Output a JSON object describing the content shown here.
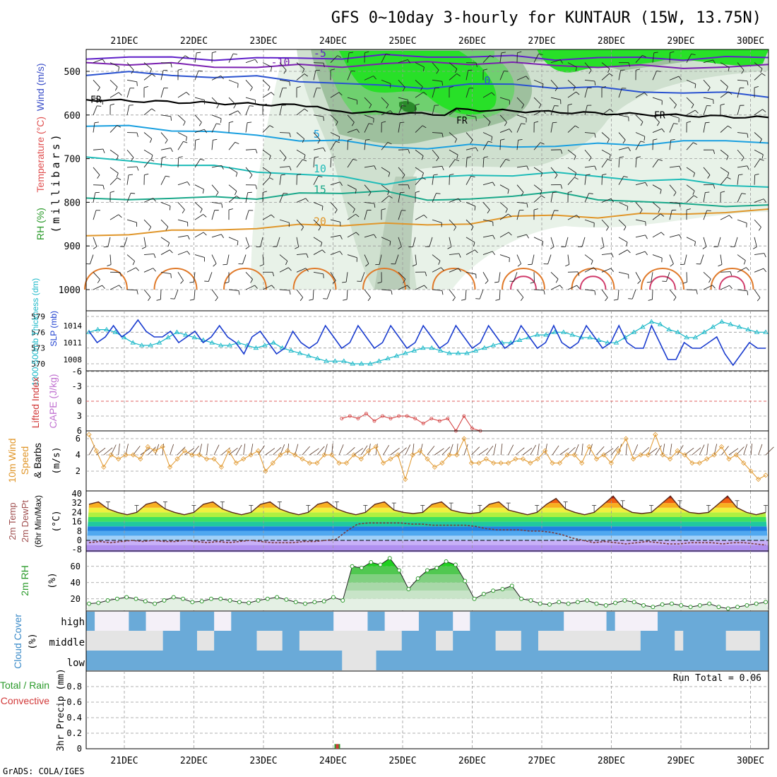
{
  "title": "GFS 0~10day 3-hourly for KUNTAUR (15W, 13.75N)",
  "footer": "GrADS: COLA/IGES",
  "dates": [
    "21DEC",
    "22DEC",
    "23DEC",
    "24DEC",
    "25DEC",
    "26DEC",
    "27DEC",
    "28DEC",
    "29DEC",
    "30DEC"
  ],
  "chart_data": [
    {
      "type": "heatmap",
      "panel": "vertical cross-section",
      "ylabel_parts": [
        "RH (%)",
        "Temperature (°C)",
        "Wind (m/s)"
      ],
      "ylabel_unit": "(millibars)",
      "yticks": [
        500,
        600,
        700,
        800,
        900,
        1000
      ],
      "ylim": [
        450,
        1000
      ],
      "freezing_label": "FR",
      "temperature_contours": [
        {
          "label": "-10",
          "color": "#7a1fb0",
          "p": [
            480,
            482,
            485,
            488,
            490,
            488,
            486,
            484,
            480,
            480,
            483,
            486,
            488,
            490,
            490,
            490,
            488
          ]
        },
        {
          "label": "-5",
          "color": "#5f1fc8",
          "p": [
            468,
            468,
            470,
            470,
            472,
            470,
            468,
            466,
            465,
            466,
            468,
            470,
            470,
            470,
            470,
            470,
            468
          ]
        },
        {
          "label": "0",
          "color": "#2a52d0",
          "p": [
            505,
            505,
            508,
            512,
            515,
            520,
            528,
            535,
            535,
            532,
            530,
            535,
            540,
            545,
            548,
            552,
            555
          ]
        },
        {
          "label": "5",
          "color": "#1aa0e0",
          "p": [
            625,
            628,
            632,
            640,
            648,
            655,
            662,
            672,
            675,
            672,
            670,
            672,
            668,
            665,
            662,
            660,
            660
          ]
        },
        {
          "label": "10",
          "color": "#1fbcb8",
          "p": [
            700,
            705,
            712,
            720,
            728,
            735,
            745,
            755,
            745,
            740,
            735,
            735,
            740,
            748,
            752,
            758,
            765
          ]
        },
        {
          "label": "15",
          "color": "#1aa88a",
          "p": [
            795,
            790,
            792,
            790,
            788,
            782,
            780,
            770,
            800,
            790,
            785,
            780,
            790,
            800,
            805,
            805,
            810
          ]
        },
        {
          "label": "20",
          "color": "#e0962a",
          "p": [
            878,
            870,
            868,
            862,
            858,
            855,
            850,
            848,
            855,
            845,
            835,
            830,
            832,
            830,
            825,
            822,
            820
          ]
        }
      ],
      "rh_levels": [
        10,
        30,
        50,
        70,
        90
      ]
    },
    {
      "type": "line",
      "panel": "slp-thickness",
      "ylabel_left": "1000-500mb Thickness (dm)",
      "ylabel_right": "SLP (mb)",
      "left_ticks": [
        570,
        573,
        576,
        579
      ],
      "right_ticks": [
        1008,
        1011,
        1014
      ],
      "series": [
        {
          "name": "SLP (mb)",
          "color": "#1a3ccf",
          "values": [
            1013,
            1011,
            1012,
            1014,
            1012,
            1013,
            1015,
            1013,
            1012,
            1012,
            1013,
            1011,
            1012,
            1013,
            1011,
            1012,
            1014,
            1012,
            1011,
            1009,
            1012,
            1013,
            1011,
            1009,
            1010,
            1013,
            1011,
            1010,
            1011,
            1014,
            1012,
            1010,
            1011,
            1014,
            1012,
            1010,
            1011,
            1014,
            1012,
            1010,
            1011,
            1014,
            1012,
            1010,
            1011,
            1014,
            1012,
            1010,
            1011,
            1014,
            1012,
            1010,
            1011,
            1014,
            1012,
            1010,
            1011,
            1014,
            1011,
            1010,
            1011,
            1014,
            1012,
            1010,
            1011,
            1014,
            1011,
            1010,
            1010,
            1014,
            1011,
            1008,
            1008,
            1011,
            1010,
            1010,
            1011,
            1012,
            1009,
            1007,
            1009,
            1011,
            1010,
            1010
          ]
        },
        {
          "name": "Thickness (dm)",
          "color": "#1ab8c8",
          "values": [
            576,
            576.5,
            576.5,
            576,
            575,
            574,
            573.5,
            573.5,
            574,
            575,
            576,
            575.5,
            575,
            574.5,
            574,
            573.5,
            573.5,
            574,
            573.5,
            573,
            573.5,
            574,
            573,
            572.5,
            572,
            571.5,
            571,
            570.5,
            570.5,
            570.5,
            570,
            570,
            570,
            570.5,
            571,
            571.5,
            572,
            572.5,
            573,
            573,
            572.5,
            572,
            572,
            572,
            572.5,
            573,
            573.5,
            574,
            574,
            574.5,
            575,
            575.5,
            575.5,
            576,
            576,
            575.5,
            575,
            575,
            574.5,
            574,
            574,
            575,
            576,
            577,
            578,
            577.5,
            576.5,
            576,
            575,
            575,
            576,
            577,
            578,
            577.5,
            577,
            576.5,
            576,
            576
          ]
        }
      ]
    },
    {
      "type": "line",
      "panel": "stability",
      "ylabel_left": "Lifted Index",
      "ylabel_right": "CAPE (J/kg)",
      "yticks": [
        -6,
        -3,
        0,
        3,
        6
      ],
      "series": [
        {
          "name": "Lifted Index",
          "color": "#d23a3a",
          "values": [
            null,
            null,
            null,
            null,
            null,
            null,
            null,
            null,
            null,
            null,
            null,
            null,
            null,
            null,
            null,
            null,
            null,
            null,
            null,
            null,
            null,
            null,
            null,
            null,
            null,
            null,
            null,
            null,
            null,
            null,
            null,
            3.5,
            3,
            3.5,
            2.5,
            4,
            3,
            3.5,
            3,
            3,
            3.5,
            4.5,
            3.5,
            4,
            3.5,
            6,
            3,
            5.5,
            6
          ]
        }
      ]
    },
    {
      "type": "line",
      "panel": "10m wind",
      "ylabel": [
        "10m Wind",
        "Speed",
        "& Barbs",
        "(m/s)"
      ],
      "yticks": [
        2,
        4,
        6
      ],
      "series": [
        {
          "name": "Speed",
          "color": "#e0962a",
          "values": [
            6.5,
            4.5,
            2.5,
            4,
            3.5,
            4,
            4,
            3.5,
            5,
            4.5,
            5,
            2.5,
            3.5,
            4.5,
            4,
            4,
            3.5,
            3.5,
            2.5,
            4.5,
            3,
            3.5,
            4,
            4.5,
            2,
            3,
            4,
            4.5,
            4,
            3.5,
            3,
            3,
            4,
            4,
            3,
            3,
            4,
            3.5,
            4.5,
            5,
            3,
            3.5,
            4,
            1,
            4,
            4.5,
            3.5,
            2.5,
            3,
            4,
            4,
            6,
            3,
            3,
            3.5,
            3,
            3,
            3,
            3.5,
            3.5,
            3,
            3.5,
            4.5,
            3,
            3,
            4,
            4,
            3,
            5,
            3.5,
            4,
            3,
            4.5,
            6,
            3.5,
            4,
            4,
            6.5,
            4,
            3.5,
            4.5,
            4,
            3,
            3,
            3.5,
            4,
            5,
            3.5,
            4,
            3,
            2,
            1,
            1.5
          ]
        }
      ]
    },
    {
      "type": "line",
      "panel": "2m temp",
      "ylabel": [
        "2m Temp",
        "2m DewPt",
        "(6hr Min/Max)",
        "(°C)"
      ],
      "yticks": [
        -8,
        0,
        8,
        16,
        24,
        32,
        40
      ],
      "series": [
        {
          "name": "2m Temp",
          "color": "#5a2a1a",
          "values": [
            31,
            33,
            27,
            24,
            22,
            24,
            31,
            33,
            27,
            24,
            22,
            24,
            31,
            33,
            27,
            24,
            22,
            24,
            31,
            33,
            27,
            24,
            22,
            24,
            31,
            33,
            27,
            24,
            22,
            24,
            31,
            33,
            26,
            24,
            23,
            24,
            31,
            33,
            26,
            24,
            23,
            24,
            31,
            33,
            26,
            24,
            22,
            24,
            31,
            36,
            27,
            24,
            22,
            24,
            31,
            38,
            28,
            24,
            23,
            24,
            31,
            38,
            28,
            24,
            23,
            24,
            31,
            38,
            28,
            24,
            22,
            24
          ]
        },
        {
          "name": "2m DewPt",
          "color": "#7a3a3a",
          "values": [
            -2,
            -1,
            -2,
            -1,
            0,
            -1,
            0,
            -1,
            -1,
            0,
            -1,
            -2,
            -1,
            -2,
            -1,
            0,
            -1,
            -2,
            -2,
            -2,
            -1,
            -1,
            0,
            1,
            8,
            14,
            15,
            15,
            15,
            15,
            14,
            14,
            13,
            13,
            13,
            13,
            12,
            10,
            9,
            9,
            9,
            8,
            8,
            7,
            5,
            2,
            0,
            -2,
            -1,
            -2,
            -3,
            -2,
            -1,
            -2,
            -3,
            -3,
            -2,
            -2,
            -2,
            -3,
            -2,
            -2,
            -3,
            -4
          ]
        }
      ]
    },
    {
      "type": "area",
      "panel": "2m rh",
      "ylabel": [
        "2m RH",
        "(%)"
      ],
      "yticks": [
        20,
        40,
        60
      ],
      "series": [
        {
          "name": "2m RH",
          "color": "#2a9a2a",
          "values": [
            14,
            15,
            18,
            20,
            22,
            20,
            17,
            14,
            18,
            22,
            20,
            16,
            17,
            20,
            20,
            18,
            16,
            15,
            18,
            20,
            22,
            19,
            16,
            14,
            16,
            17,
            22,
            18,
            60,
            58,
            65,
            62,
            70,
            55,
            32,
            45,
            55,
            58,
            66,
            62,
            42,
            20,
            26,
            30,
            32,
            36,
            20,
            18,
            14,
            13,
            16,
            14,
            16,
            18,
            14,
            12,
            15,
            18,
            16,
            12,
            10,
            13,
            14,
            12,
            10,
            12,
            14,
            10,
            8,
            10,
            12,
            14,
            16
          ]
        }
      ]
    },
    {
      "type": "heatmap",
      "panel": "cloud cover",
      "ylabel": [
        "Cloud Cover",
        "(%)"
      ],
      "levels": [
        "high",
        "middle",
        "low"
      ]
    },
    {
      "type": "bar",
      "panel": "precipitation",
      "ylabel": "3hr Precip (mm)",
      "left_labels": [
        "Total / Rain",
        "Convective"
      ],
      "yticks": [
        "0",
        "0.2",
        "0.4",
        "0.6",
        "0.8"
      ],
      "ylim": [
        0,
        1
      ],
      "run_total": "Run Total = 0.06",
      "bars": [
        {
          "x": "24DEC",
          "total": 0.06,
          "convective": 0.03
        }
      ]
    }
  ]
}
